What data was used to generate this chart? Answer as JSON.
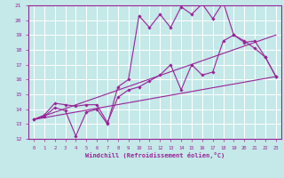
{
  "xlabel": "Windchill (Refroidissement éolien,°C)",
  "bg_color": "#c5e8e8",
  "grid_color": "#ffffff",
  "line_color": "#992299",
  "xlim": [
    -0.5,
    23.5
  ],
  "ylim": [
    12,
    21
  ],
  "xticks": [
    0,
    1,
    2,
    3,
    4,
    5,
    6,
    7,
    8,
    9,
    10,
    11,
    12,
    13,
    14,
    15,
    16,
    17,
    18,
    19,
    20,
    21,
    22,
    23
  ],
  "yticks": [
    12,
    13,
    14,
    15,
    16,
    17,
    18,
    19,
    20,
    21
  ],
  "series": {
    "line1_x": [
      0,
      1,
      2,
      3,
      4,
      5,
      6,
      7,
      8,
      9,
      10,
      11,
      12,
      13,
      14,
      15,
      16,
      17,
      18,
      19,
      20,
      21,
      22,
      23
    ],
    "line1_y": [
      13.3,
      13.6,
      14.4,
      14.3,
      14.2,
      14.3,
      14.3,
      13.1,
      14.8,
      15.3,
      15.5,
      15.9,
      16.3,
      17.0,
      15.3,
      17.0,
      16.3,
      16.5,
      18.6,
      19.0,
      18.6,
      18.1,
      17.5,
      16.2
    ],
    "line2_x": [
      0,
      1,
      2,
      3,
      4,
      5,
      6,
      7,
      8,
      9,
      10,
      11,
      12,
      13,
      14,
      15,
      16,
      17,
      18,
      19,
      20,
      21,
      22,
      23
    ],
    "line2_y": [
      13.3,
      13.5,
      14.1,
      13.9,
      12.2,
      13.8,
      14.0,
      13.0,
      15.5,
      16.0,
      20.3,
      19.5,
      20.4,
      19.5,
      20.9,
      20.4,
      21.1,
      20.1,
      21.2,
      19.0,
      18.5,
      18.6,
      17.5,
      16.2
    ],
    "line3_x": [
      0,
      23
    ],
    "line3_y": [
      13.3,
      16.2
    ],
    "line4_x": [
      0,
      23
    ],
    "line4_y": [
      13.3,
      19.0
    ]
  }
}
